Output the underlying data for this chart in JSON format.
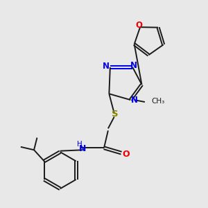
{
  "background_color": "#e8e8e8",
  "bond_color": "#1a1a1a",
  "n_color": "#0000ee",
  "o_color": "#ee0000",
  "s_color": "#888800",
  "figsize": [
    3.0,
    3.0
  ],
  "dpi": 100,
  "xlim": [
    0,
    10
  ],
  "ylim": [
    0,
    10
  ]
}
